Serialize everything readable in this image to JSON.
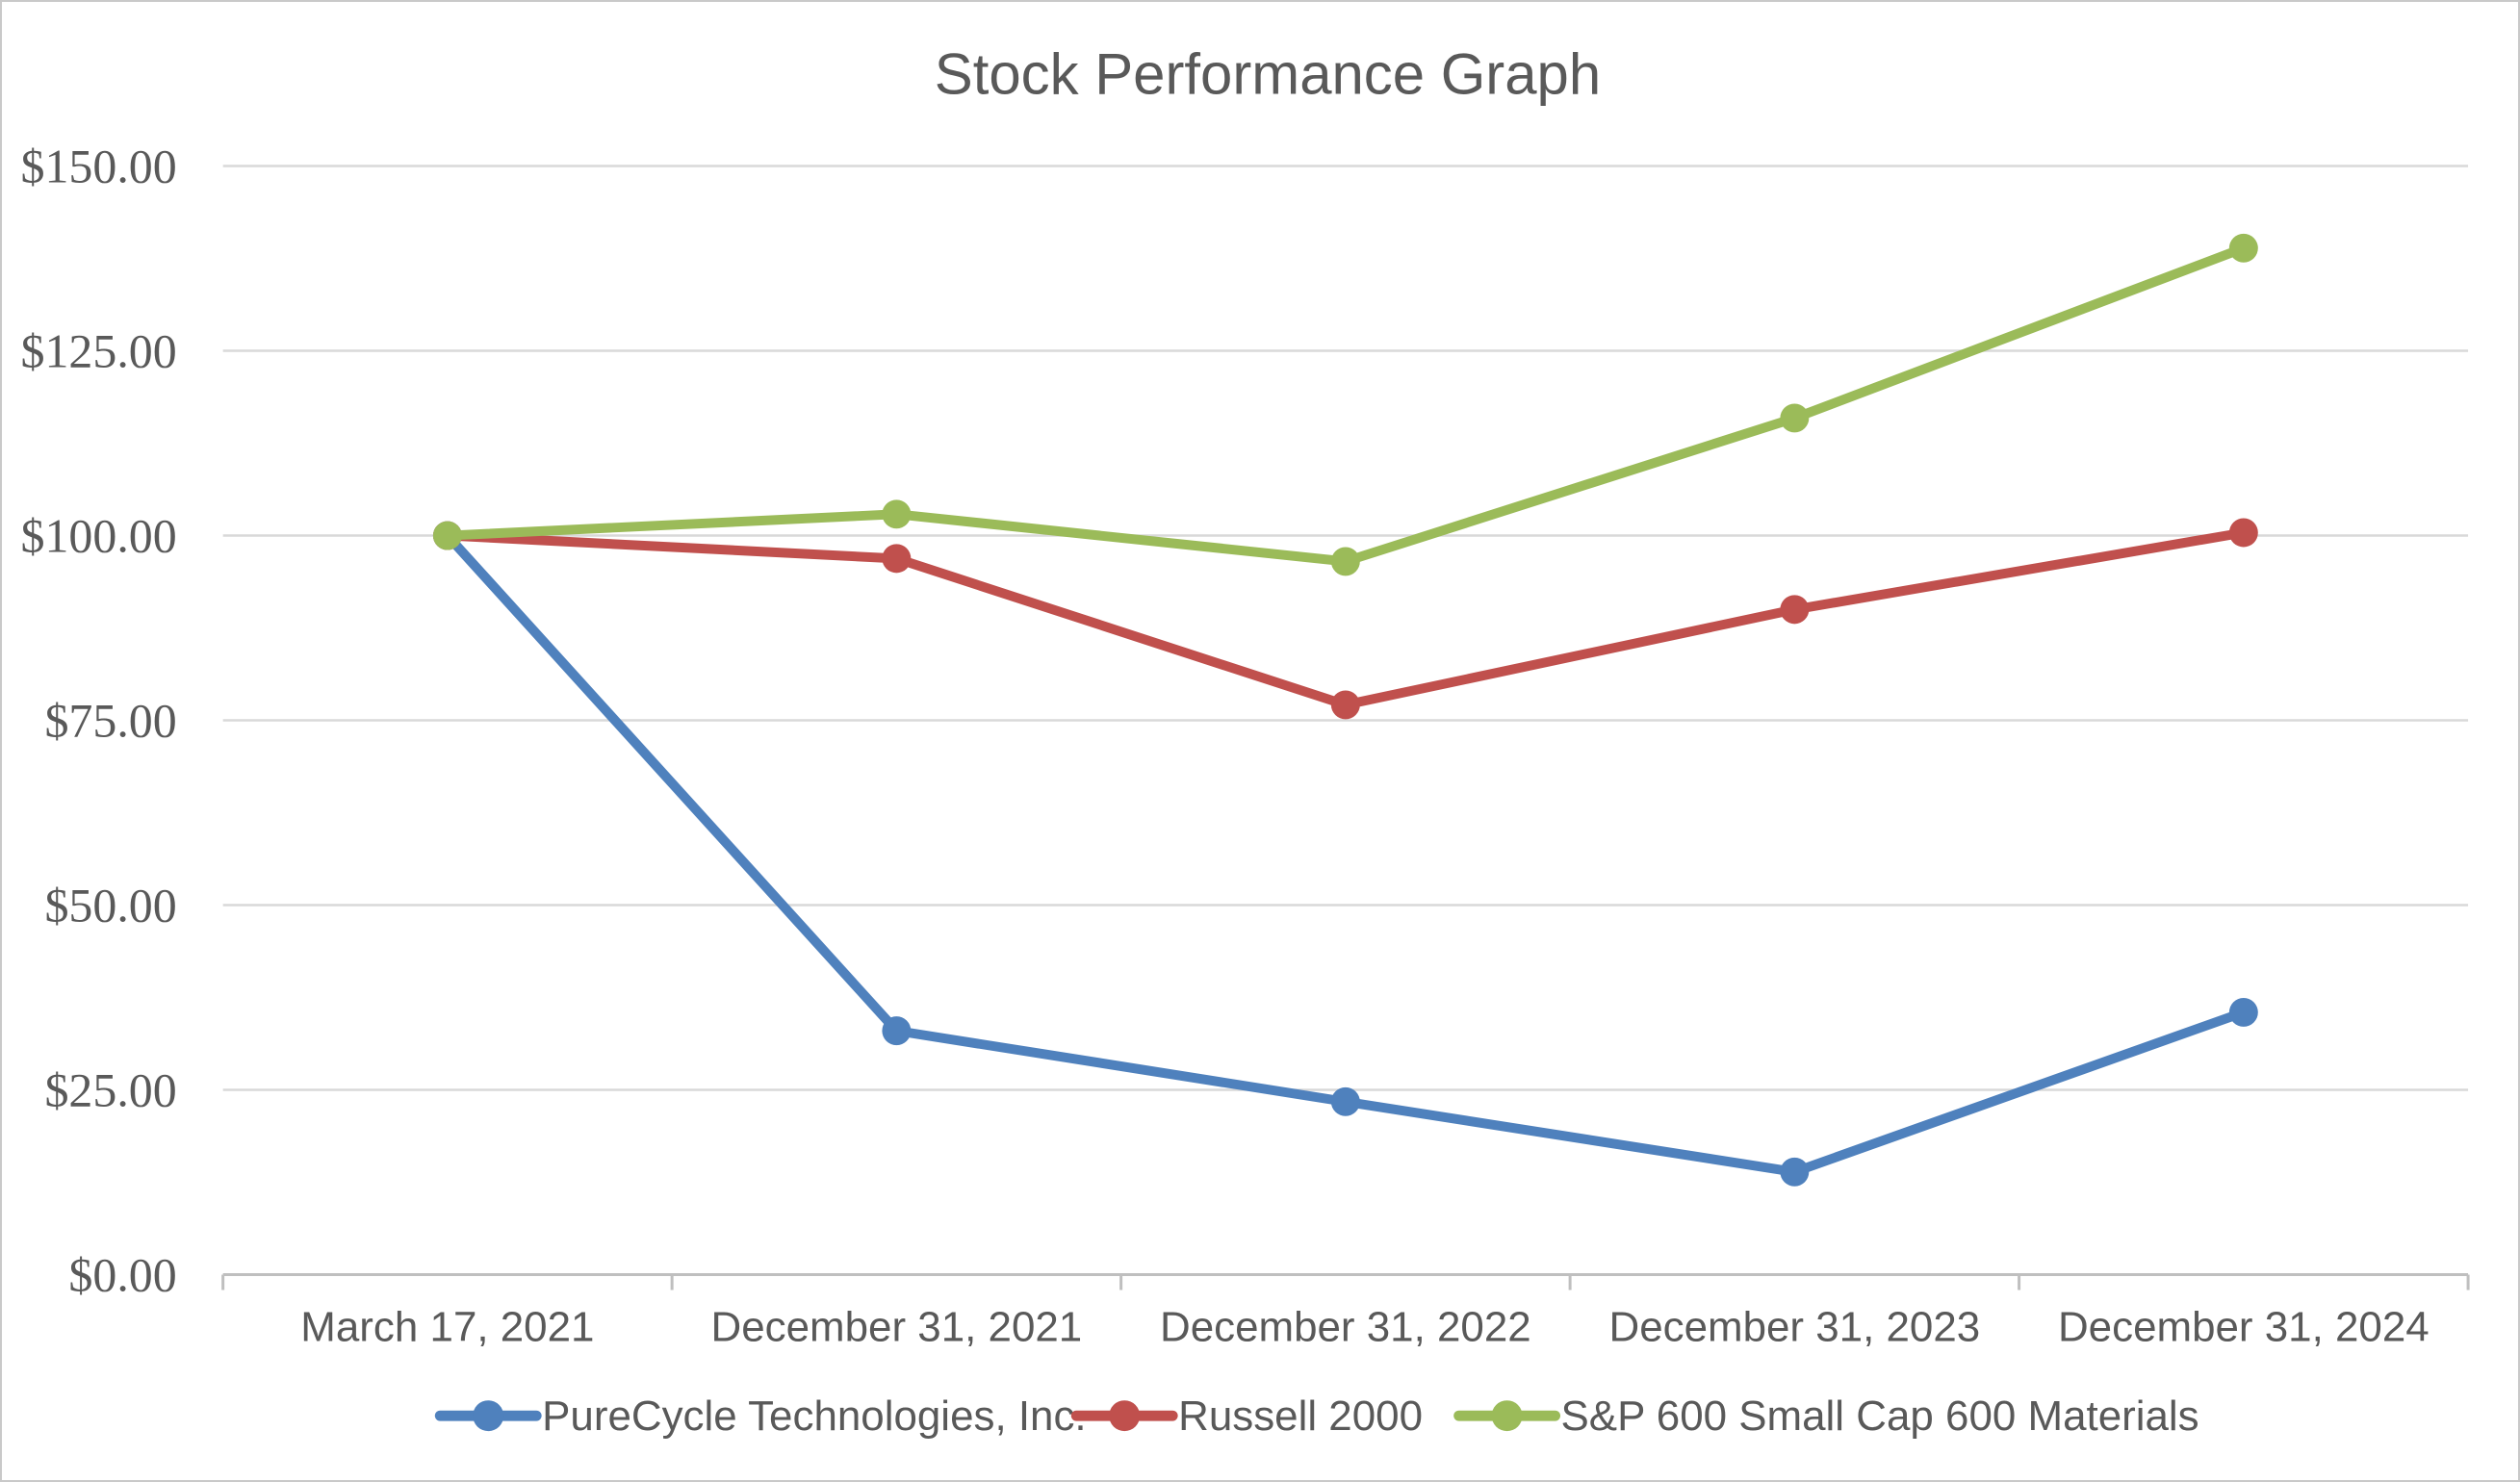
{
  "chart_data": {
    "type": "line",
    "title": "Stock Performance Graph",
    "categories": [
      "March 17, 2021",
      "December 31, 2021",
      "December 31, 2022",
      "December 31, 2023",
      "December 31, 2024"
    ],
    "series": [
      {
        "name": "PureCycle Technologies, Inc.",
        "color": "#4F81BD",
        "values": [
          100.0,
          33.0,
          23.4,
          13.9,
          35.5
        ]
      },
      {
        "name": "Russell 2000",
        "color": "#C0504D",
        "values": [
          100.0,
          96.9,
          77.1,
          90.0,
          100.4
        ]
      },
      {
        "name": "S&P 600 Small Cap 600 Materials",
        "color": "#9BBB59",
        "values": [
          100.0,
          102.9,
          96.5,
          115.9,
          138.9
        ]
      }
    ],
    "y_axis": {
      "min": 0,
      "max": 150,
      "step": 25,
      "tick_labels": [
        "$0.00",
        "$25.00",
        "$50.00",
        "$75.00",
        "$100.00",
        "$125.00",
        "$150.00"
      ]
    },
    "grid": true,
    "legend_position": "bottom"
  },
  "colors": {
    "text": "#595959",
    "gridline": "#D9D9D9",
    "axis": "#BFBFBF",
    "background": "#FFFFFF"
  }
}
